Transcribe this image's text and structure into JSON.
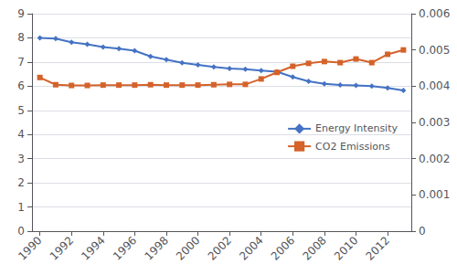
{
  "chart_data": {
    "type": "line",
    "x": [
      1990,
      1991,
      1992,
      1993,
      1994,
      1995,
      1996,
      1997,
      1998,
      1999,
      2000,
      2001,
      2002,
      2003,
      2004,
      2005,
      2006,
      2007,
      2008,
      2009,
      2010,
      2011,
      2012,
      2013
    ],
    "series": [
      {
        "name": "Energy Intensity",
        "color": "#4472C4",
        "marker": "diamond",
        "values": [
          8.0,
          7.97,
          7.82,
          7.73,
          7.62,
          7.55,
          7.47,
          7.23,
          7.1,
          6.97,
          6.88,
          6.8,
          6.73,
          6.7,
          6.65,
          6.6,
          6.38,
          6.2,
          6.1,
          6.05,
          6.03,
          6.0,
          5.93,
          5.82
        ]
      },
      {
        "name": "CO2 Emissions",
        "color": "#D4622A",
        "marker": "square",
        "axis": "y2",
        "values": [
          0.00424,
          0.00404,
          0.00402,
          0.00402,
          0.00403,
          0.00403,
          0.00403,
          0.00404,
          0.00403,
          0.00403,
          0.00403,
          0.00404,
          0.00405,
          0.00405,
          0.0042,
          0.00438,
          0.00455,
          0.00463,
          0.00468,
          0.00465,
          0.00475,
          0.00465,
          0.00488,
          0.005
        ]
      }
    ],
    "xlim": [
      1989.5,
      2013.5
    ],
    "xticks": [
      1990,
      1992,
      1994,
      1996,
      1998,
      2000,
      2002,
      2004,
      2006,
      2008,
      2010,
      2012
    ],
    "ylim": [
      0,
      9
    ],
    "yticks": [
      0,
      1,
      2,
      3,
      4,
      5,
      6,
      7,
      8,
      9
    ],
    "y2lim": [
      0,
      0.006
    ],
    "y2ticks": [
      0,
      0.001,
      0.002,
      0.003,
      0.004,
      0.005,
      0.006
    ],
    "grid": true,
    "legend": "right"
  }
}
